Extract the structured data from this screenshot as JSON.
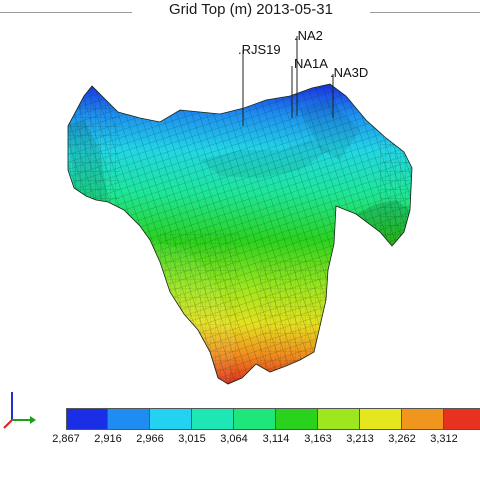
{
  "title": "Grid Top (m) 2013-05-31",
  "wells": [
    {
      "name": "RJS19",
      "label": ".RJS19"
    },
    {
      "name": "NA2",
      "label": ".NA2"
    },
    {
      "name": "NA1A",
      "label": "NA1A"
    },
    {
      "name": "NA3D",
      "label": ".NA3D"
    }
  ],
  "colorbar": {
    "ticks": [
      "2,867",
      "2,916",
      "2,966",
      "3,015",
      "3,064",
      "3,114",
      "3,163",
      "3,213",
      "3,262",
      "3,312"
    ],
    "colors": [
      "#1a2ee6",
      "#1e8cf0",
      "#22d2f0",
      "#1ee6b4",
      "#1ee67a",
      "#2ad21e",
      "#9ee61e",
      "#e6e61e",
      "#f0961e",
      "#e6321e"
    ]
  },
  "axis_triad_colors": {
    "x": "#1aa01a",
    "y": "#e02020",
    "z": "#2030d0"
  }
}
